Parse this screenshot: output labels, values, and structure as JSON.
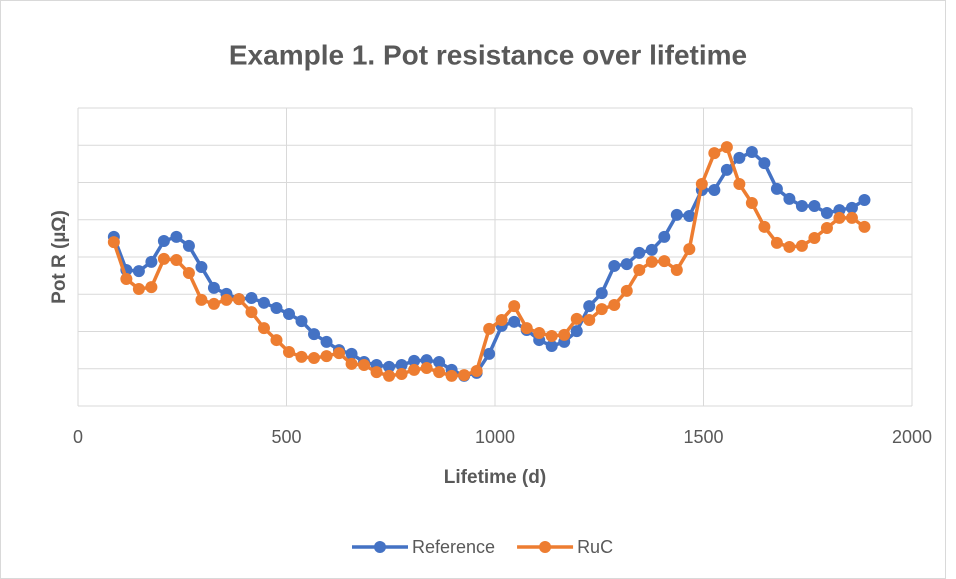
{
  "chart_data": {
    "type": "line",
    "title": "Example 1. Pot resistance over lifetime",
    "x_label": "Lifetime (d)",
    "y_label": "Pot R (µΩ)",
    "x": [
      86,
      116,
      146,
      176,
      206,
      236,
      266,
      296,
      326,
      356,
      386,
      416,
      446,
      476,
      506,
      536,
      566,
      596,
      626,
      656,
      686,
      716,
      746,
      776,
      806,
      836,
      866,
      896,
      926,
      956,
      986,
      1016,
      1046,
      1076,
      1106,
      1136,
      1166,
      1196,
      1226,
      1256,
      1286,
      1316,
      1346,
      1376,
      1406,
      1436,
      1466,
      1496,
      1526,
      1556,
      1586,
      1616,
      1646,
      1676,
      1706,
      1736,
      1766,
      1796,
      1826,
      1856,
      1886
    ],
    "series": [
      {
        "name": "Reference",
        "color": "#4472c4",
        "values": [
          4.54,
          3.65,
          3.62,
          3.87,
          4.43,
          4.54,
          4.3,
          3.73,
          3.17,
          3.01,
          2.87,
          2.9,
          2.77,
          2.63,
          2.47,
          2.28,
          1.93,
          1.72,
          1.5,
          1.4,
          1.18,
          1.1,
          1.05,
          1.1,
          1.21,
          1.23,
          1.18,
          0.97,
          0.81,
          0.89,
          1.4,
          2.15,
          2.26,
          2.04,
          1.77,
          1.61,
          1.72,
          2.01,
          2.68,
          3.03,
          3.76,
          3.81,
          4.11,
          4.19,
          4.54,
          5.13,
          5.1,
          5.8,
          5.8,
          6.34,
          6.66,
          6.82,
          6.52,
          5.83,
          5.56,
          5.37,
          5.37,
          5.18,
          5.26,
          5.32,
          5.53
        ]
      },
      {
        "name": "RuC",
        "color": "#ed7d31",
        "values": [
          4.4,
          3.41,
          3.14,
          3.19,
          3.95,
          3.92,
          3.57,
          2.85,
          2.74,
          2.85,
          2.87,
          2.52,
          2.09,
          1.77,
          1.45,
          1.32,
          1.29,
          1.34,
          1.42,
          1.13,
          1.1,
          0.91,
          0.81,
          0.86,
          0.97,
          1.02,
          0.91,
          0.81,
          0.83,
          0.94,
          2.07,
          2.31,
          2.68,
          2.09,
          1.96,
          1.88,
          1.91,
          2.34,
          2.31,
          2.6,
          2.71,
          3.09,
          3.65,
          3.87,
          3.89,
          3.65,
          4.21,
          5.96,
          6.79,
          6.95,
          5.96,
          5.45,
          4.81,
          4.38,
          4.27,
          4.3,
          4.51,
          4.78,
          5.05,
          5.05,
          4.81
        ]
      }
    ],
    "xlim": [
      0,
      2000
    ],
    "xticks": [
      0,
      500,
      1000,
      1500,
      2000
    ],
    "ylim": [
      0,
      8
    ],
    "yticks": [
      0,
      1,
      2,
      3,
      4,
      5,
      6,
      7,
      8
    ],
    "grid": true,
    "legend": "bottom"
  }
}
